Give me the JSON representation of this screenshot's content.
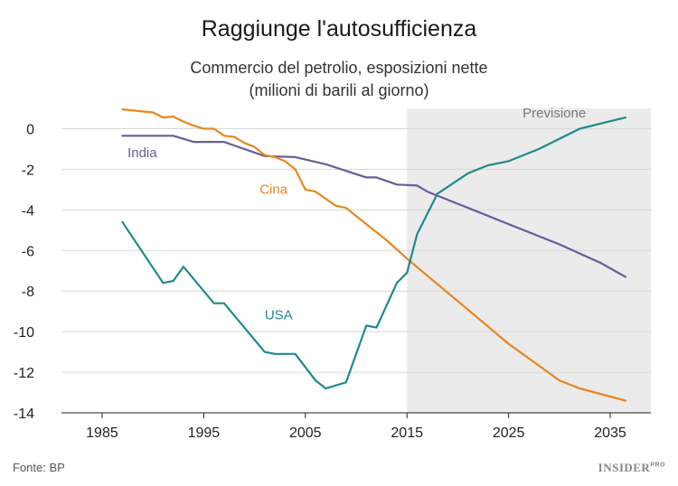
{
  "chart_data": {
    "type": "line",
    "title": "Raggiunge l'autosufficienza",
    "subtitle_line1": "Commercio del petrolio, esposizioni nette",
    "subtitle_line2": "(milioni di barili al giorno)",
    "xlim": [
      1981,
      2039
    ],
    "ylim": [
      -14,
      1
    ],
    "x_ticks": [
      1985,
      1995,
      2005,
      2015,
      2025,
      2035
    ],
    "y_ticks": [
      0,
      -2,
      -4,
      -6,
      -8,
      -10,
      -12,
      -14
    ],
    "forecast": {
      "label": "Previsione",
      "from": 2015,
      "to": 2039
    },
    "series": [
      {
        "name": "India",
        "color": "#6b5b9a",
        "points": [
          [
            1987,
            -0.35
          ],
          [
            1992,
            -0.35
          ],
          [
            1994,
            -0.65
          ],
          [
            1997,
            -0.65
          ],
          [
            2001,
            -1.35
          ],
          [
            2004,
            -1.4
          ],
          [
            2007,
            -1.75
          ],
          [
            2011,
            -2.4
          ],
          [
            2012,
            -2.4
          ],
          [
            2014,
            -2.75
          ],
          [
            2016,
            -2.8
          ],
          [
            2017,
            -3.1
          ],
          [
            2020,
            -3.7
          ],
          [
            2025,
            -4.7
          ],
          [
            2030,
            -5.7
          ],
          [
            2034,
            -6.6
          ],
          [
            2036.5,
            -7.3
          ]
        ]
      },
      {
        "name": "Cina",
        "color": "#e8861f",
        "points": [
          [
            1987,
            0.95
          ],
          [
            1990,
            0.8
          ],
          [
            1991,
            0.55
          ],
          [
            1992,
            0.6
          ],
          [
            1993,
            0.35
          ],
          [
            1994,
            0.15
          ],
          [
            1995,
            0.0
          ],
          [
            1996,
            0.0
          ],
          [
            1997,
            -0.35
          ],
          [
            1998,
            -0.4
          ],
          [
            1999,
            -0.7
          ],
          [
            2000,
            -0.9
          ],
          [
            2001,
            -1.3
          ],
          [
            2002,
            -1.4
          ],
          [
            2003,
            -1.6
          ],
          [
            2004,
            -2.0
          ],
          [
            2005,
            -3.0
          ],
          [
            2006,
            -3.1
          ],
          [
            2008,
            -3.8
          ],
          [
            2009,
            -3.9
          ],
          [
            2011,
            -4.7
          ],
          [
            2013,
            -5.5
          ],
          [
            2015,
            -6.4
          ],
          [
            2020,
            -8.5
          ],
          [
            2025,
            -10.6
          ],
          [
            2030,
            -12.4
          ],
          [
            2032,
            -12.8
          ],
          [
            2036.5,
            -13.4
          ]
        ]
      },
      {
        "name": "USA",
        "color": "#1f8a8a",
        "points": [
          [
            1987,
            -4.6
          ],
          [
            1991,
            -7.6
          ],
          [
            1992,
            -7.5
          ],
          [
            1993,
            -6.8
          ],
          [
            1996,
            -8.6
          ],
          [
            1997,
            -8.6
          ],
          [
            1998,
            -9.2
          ],
          [
            1999,
            -9.8
          ],
          [
            2001,
            -11.0
          ],
          [
            2002,
            -11.1
          ],
          [
            2004,
            -11.1
          ],
          [
            2006,
            -12.4
          ],
          [
            2007,
            -12.8
          ],
          [
            2009,
            -12.5
          ],
          [
            2011,
            -9.7
          ],
          [
            2012,
            -9.8
          ],
          [
            2014,
            -7.6
          ],
          [
            2015,
            -7.1
          ],
          [
            2016,
            -5.2
          ],
          [
            2018,
            -3.2
          ],
          [
            2021,
            -2.2
          ],
          [
            2023,
            -1.8
          ],
          [
            2025,
            -1.6
          ],
          [
            2028,
            -1.0
          ],
          [
            2032,
            0.0
          ],
          [
            2036.5,
            0.55
          ]
        ]
      }
    ],
    "labels": [
      {
        "series": "India",
        "text": "India",
        "x": 1987.5,
        "y": -1.4
      },
      {
        "series": "Cina",
        "text": "Cina",
        "x": 2000.5,
        "y": -3.2
      },
      {
        "series": "USA",
        "text": "USA",
        "x": 2001,
        "y": -9.4
      }
    ]
  },
  "footer": {
    "source": "Fonte: BP",
    "brand": "INSIDER",
    "brand_suffix": "PRO"
  }
}
